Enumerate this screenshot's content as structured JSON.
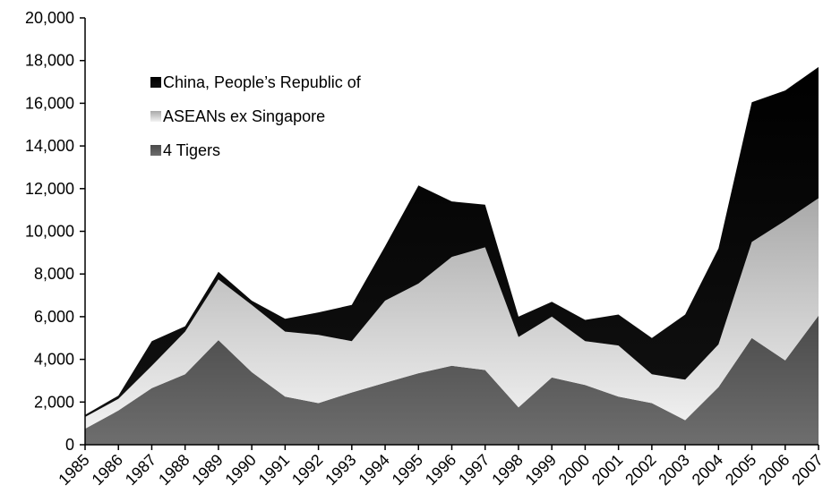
{
  "chart_data": {
    "type": "area",
    "stacked": true,
    "x": [
      "1985",
      "1986",
      "1987",
      "1988",
      "1989",
      "1990",
      "1991",
      "1992",
      "1993",
      "1994",
      "1995",
      "1996",
      "1997",
      "1998",
      "1999",
      "2000",
      "2001",
      "2002",
      "2003",
      "2004",
      "2005",
      "2006",
      "2007"
    ],
    "ylim": [
      0,
      20000
    ],
    "yticks": [
      "0",
      "2,000",
      "4,000",
      "6,000",
      "8,000",
      "10,000",
      "12,000",
      "14,000",
      "16,000",
      "18,000",
      "20,000"
    ],
    "grid": false,
    "legend_position": "top-left",
    "series": [
      {
        "name": "4 Tigers",
        "color": "#5a5a5a",
        "values": [
          750,
          1600,
          2650,
          3300,
          4900,
          3400,
          2250,
          1950,
          2450,
          2900,
          3350,
          3700,
          3500,
          1750,
          3150,
          2800,
          2250,
          1950,
          1150,
          2700,
          5000,
          3950,
          6050
        ]
      },
      {
        "name": "ASEANs ex Singapore",
        "color": "#c8c8c8",
        "values": [
          550,
          550,
          1050,
          2000,
          2850,
          3150,
          3050,
          3200,
          2400,
          3850,
          4200,
          5100,
          5750,
          3300,
          2850,
          2050,
          2400,
          1350,
          1900,
          2000,
          4500,
          6550,
          5500
        ]
      },
      {
        "name": "China, People’s Republic of",
        "color": "#000000",
        "values": [
          100,
          150,
          1150,
          250,
          350,
          200,
          600,
          1050,
          1700,
          2550,
          4600,
          2600,
          2000,
          950,
          700,
          1000,
          1450,
          1700,
          3050,
          4500,
          6550,
          6100,
          6150
        ]
      }
    ]
  }
}
